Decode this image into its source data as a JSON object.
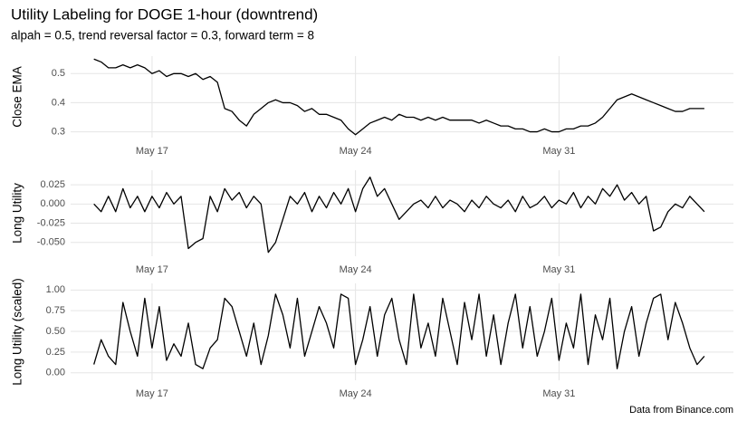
{
  "title": "Utility Labeling for DOGE 1-hour (downtrend)",
  "subtitle": "alpah = 0.5, trend reversal factor = 0.3, forward term = 8",
  "caption": "Data from Binance.com",
  "chart_data": [
    {
      "type": "line",
      "ylabel": "Close EMA",
      "color": "#000000",
      "grid": true,
      "x": [
        15,
        15.25,
        15.5,
        15.75,
        16,
        16.25,
        16.5,
        16.75,
        17,
        17.25,
        17.5,
        17.75,
        18,
        18.25,
        18.5,
        18.75,
        19,
        19.25,
        19.5,
        19.75,
        20,
        20.25,
        20.5,
        20.75,
        21,
        21.25,
        21.5,
        21.75,
        22,
        22.25,
        22.5,
        22.75,
        23,
        23.25,
        23.5,
        23.75,
        24,
        24.25,
        24.5,
        24.75,
        25,
        25.25,
        25.5,
        25.75,
        26,
        26.25,
        26.5,
        26.75,
        27,
        27.25,
        27.5,
        27.75,
        28,
        28.25,
        28.5,
        28.75,
        29,
        29.25,
        29.5,
        29.75,
        30,
        30.25,
        30.5,
        30.75,
        31,
        31.25,
        31.5,
        31.75,
        32,
        32.25,
        32.5,
        32.75,
        33,
        33.25,
        33.5,
        33.75,
        34,
        34.25,
        34.5,
        34.75,
        35,
        35.25,
        35.5,
        35.75,
        36
      ],
      "values": [
        0.55,
        0.54,
        0.52,
        0.52,
        0.53,
        0.52,
        0.53,
        0.52,
        0.5,
        0.51,
        0.49,
        0.5,
        0.5,
        0.49,
        0.5,
        0.48,
        0.49,
        0.47,
        0.38,
        0.37,
        0.34,
        0.32,
        0.36,
        0.38,
        0.4,
        0.41,
        0.4,
        0.4,
        0.39,
        0.37,
        0.38,
        0.36,
        0.36,
        0.35,
        0.34,
        0.31,
        0.29,
        0.31,
        0.33,
        0.34,
        0.35,
        0.34,
        0.36,
        0.35,
        0.35,
        0.34,
        0.35,
        0.34,
        0.35,
        0.34,
        0.34,
        0.34,
        0.34,
        0.33,
        0.34,
        0.33,
        0.32,
        0.32,
        0.31,
        0.31,
        0.3,
        0.3,
        0.31,
        0.3,
        0.3,
        0.31,
        0.31,
        0.32,
        0.32,
        0.33,
        0.35,
        0.38,
        0.41,
        0.42,
        0.43,
        0.42,
        0.41,
        0.4,
        0.39,
        0.38,
        0.37,
        0.37,
        0.38,
        0.38,
        0.38
      ],
      "xlim": [
        14.2,
        37.0
      ],
      "xticks": [
        {
          "value": 17,
          "label": "May 17"
        },
        {
          "value": 24,
          "label": "May 24"
        },
        {
          "value": 31,
          "label": "May 31"
        }
      ],
      "ylim": [
        0.28,
        0.56
      ],
      "yticks": [
        0.3,
        0.4,
        0.5
      ]
    },
    {
      "type": "line",
      "ylabel": "Long Utility",
      "color": "#000000",
      "grid": true,
      "x": [
        15,
        15.25,
        15.5,
        15.75,
        16,
        16.25,
        16.5,
        16.75,
        17,
        17.25,
        17.5,
        17.75,
        18,
        18.25,
        18.5,
        18.75,
        19,
        19.25,
        19.5,
        19.75,
        20,
        20.25,
        20.5,
        20.75,
        21,
        21.25,
        21.5,
        21.75,
        22,
        22.25,
        22.5,
        22.75,
        23,
        23.25,
        23.5,
        23.75,
        24,
        24.25,
        24.5,
        24.75,
        25,
        25.25,
        25.5,
        25.75,
        26,
        26.25,
        26.5,
        26.75,
        27,
        27.25,
        27.5,
        27.75,
        28,
        28.25,
        28.5,
        28.75,
        29,
        29.25,
        29.5,
        29.75,
        30,
        30.25,
        30.5,
        30.75,
        31,
        31.25,
        31.5,
        31.75,
        32,
        32.25,
        32.5,
        32.75,
        33,
        33.25,
        33.5,
        33.75,
        34,
        34.25,
        34.5,
        34.75,
        35,
        35.25,
        35.5,
        35.75,
        36
      ],
      "values": [
        0,
        -0.01,
        0.01,
        -0.01,
        0.02,
        -0.005,
        0.01,
        -0.01,
        0.01,
        -0.005,
        0.015,
        0,
        0.01,
        -0.058,
        -0.05,
        -0.045,
        0.01,
        -0.01,
        0.02,
        0.005,
        0.015,
        -0.005,
        0.01,
        0,
        -0.063,
        -0.05,
        -0.02,
        0.01,
        0,
        0.015,
        -0.01,
        0.01,
        -0.005,
        0.015,
        0,
        0.02,
        -0.01,
        0.02,
        0.035,
        0.01,
        0.02,
        0,
        -0.02,
        -0.01,
        0,
        0.005,
        -0.005,
        0.01,
        -0.005,
        0.005,
        0,
        -0.01,
        0.005,
        -0.005,
        0.01,
        0,
        -0.005,
        0.005,
        -0.01,
        0.01,
        -0.005,
        0,
        0.01,
        -0.005,
        0.005,
        0,
        0.015,
        -0.005,
        0.01,
        0,
        0.02,
        0.01,
        0.025,
        0.005,
        0.015,
        0,
        0.01,
        -0.035,
        -0.03,
        -0.01,
        0,
        -0.005,
        0.01,
        0,
        -0.01
      ],
      "xlim": [
        14.2,
        37.0
      ],
      "xticks": [
        {
          "value": 17,
          "label": "May 17"
        },
        {
          "value": 24,
          "label": "May 24"
        },
        {
          "value": 31,
          "label": "May 31"
        }
      ],
      "ylim": [
        -0.068,
        0.044
      ],
      "yticks": [
        {
          "value": -0.05,
          "label": "-0.050"
        },
        -0.025,
        {
          "value": 0,
          "label": "0.000"
        },
        0.025
      ]
    },
    {
      "type": "line",
      "ylabel": "Long Utility (scaled)",
      "color": "#000000",
      "grid": true,
      "x": [
        15,
        15.25,
        15.5,
        15.75,
        16,
        16.25,
        16.5,
        16.75,
        17,
        17.25,
        17.5,
        17.75,
        18,
        18.25,
        18.5,
        18.75,
        19,
        19.25,
        19.5,
        19.75,
        20,
        20.25,
        20.5,
        20.75,
        21,
        21.25,
        21.5,
        21.75,
        22,
        22.25,
        22.5,
        22.75,
        23,
        23.25,
        23.5,
        23.75,
        24,
        24.25,
        24.5,
        24.75,
        25,
        25.25,
        25.5,
        25.75,
        26,
        26.25,
        26.5,
        26.75,
        27,
        27.25,
        27.5,
        27.75,
        28,
        28.25,
        28.5,
        28.75,
        29,
        29.25,
        29.5,
        29.75,
        30,
        30.25,
        30.5,
        30.75,
        31,
        31.25,
        31.5,
        31.75,
        32,
        32.25,
        32.5,
        32.75,
        33,
        33.25,
        33.5,
        33.75,
        34,
        34.25,
        34.5,
        34.75,
        35,
        35.25,
        35.5,
        35.75,
        36
      ],
      "values": [
        0.1,
        0.4,
        0.2,
        0.1,
        0.85,
        0.5,
        0.2,
        0.9,
        0.3,
        0.8,
        0.15,
        0.35,
        0.2,
        0.6,
        0.1,
        0.05,
        0.3,
        0.4,
        0.9,
        0.8,
        0.5,
        0.2,
        0.6,
        0.1,
        0.45,
        0.95,
        0.7,
        0.3,
        0.9,
        0.2,
        0.5,
        0.8,
        0.6,
        0.3,
        0.95,
        0.9,
        0.1,
        0.4,
        0.8,
        0.2,
        0.7,
        0.9,
        0.4,
        0.1,
        0.95,
        0.3,
        0.6,
        0.2,
        0.9,
        0.5,
        0.1,
        0.85,
        0.4,
        0.95,
        0.2,
        0.7,
        0.1,
        0.6,
        0.95,
        0.3,
        0.8,
        0.2,
        0.5,
        0.9,
        0.15,
        0.6,
        0.3,
        0.95,
        0.1,
        0.7,
        0.4,
        0.9,
        0.05,
        0.5,
        0.8,
        0.2,
        0.6,
        0.9,
        0.95,
        0.4,
        0.85,
        0.6,
        0.3,
        0.1,
        0.2
      ],
      "xlim": [
        14.2,
        37.0
      ],
      "xticks": [
        {
          "value": 17,
          "label": "May 17"
        },
        {
          "value": 24,
          "label": "May 24"
        },
        {
          "value": 31,
          "label": "May 31"
        }
      ],
      "ylim": [
        -0.09,
        1.08
      ],
      "yticks": [
        {
          "value": 0,
          "label": "0.00"
        },
        0.25,
        {
          "value": 0.5,
          "label": "0.50"
        },
        0.75,
        {
          "value": 1,
          "label": "1.00"
        }
      ]
    }
  ]
}
